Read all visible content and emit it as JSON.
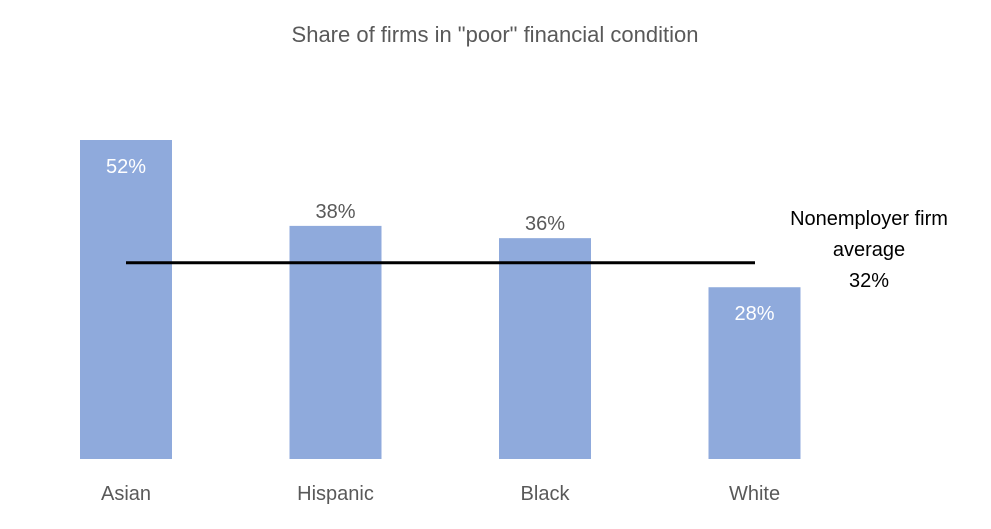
{
  "chart_data": {
    "type": "bar",
    "title": "Share of firms in \"poor\" financial condition",
    "categories": [
      "Asian",
      "Hispanic",
      "Black",
      "White"
    ],
    "values": [
      52,
      38,
      36,
      28
    ],
    "value_labels": [
      "52%",
      "38%",
      "36%",
      "28%"
    ],
    "ylim": [
      0,
      52
    ],
    "grid": false,
    "reference_line": {
      "value": 32,
      "label_lines": [
        "Nonemployer firm",
        "average",
        "32%"
      ]
    },
    "colors": {
      "bar": "#8FAADC",
      "label_inside": "#ffffff",
      "label_outside": "#595959",
      "category_label": "#595959",
      "title": "#595959",
      "reference_line": "#000000",
      "reference_label": "#000000"
    }
  }
}
